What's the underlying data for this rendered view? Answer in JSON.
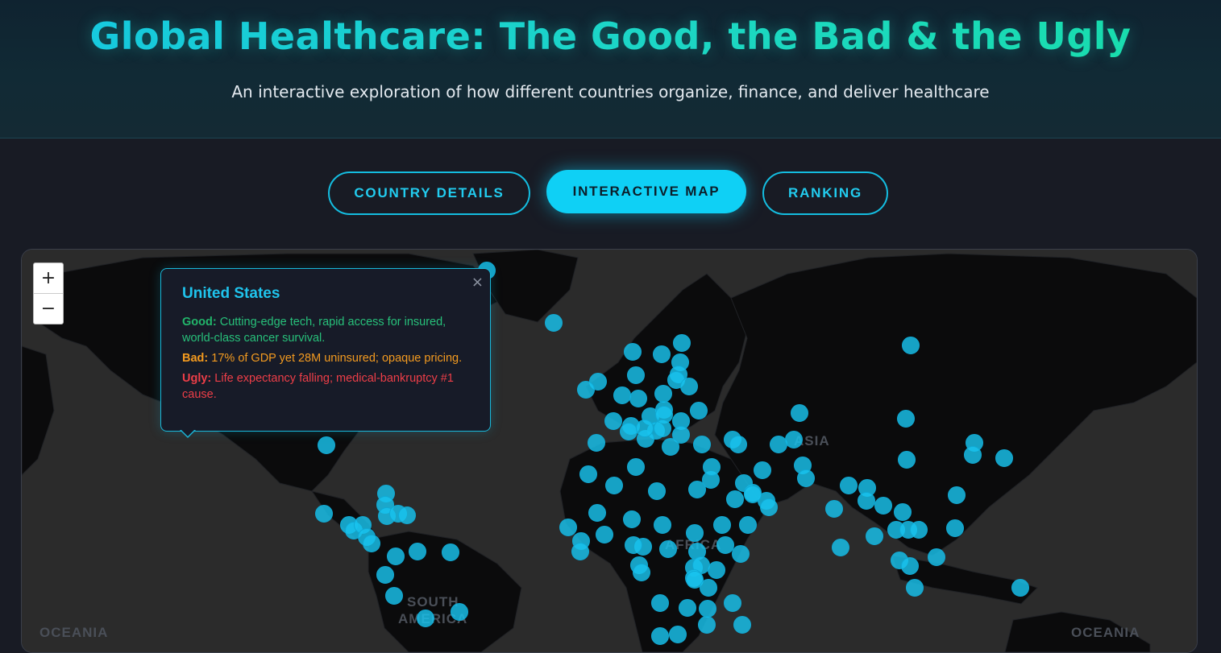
{
  "header": {
    "title": "Global Healthcare: The Good, the Bad & the Ugly",
    "subtitle": "An interactive exploration of how different countries organize, finance, and deliver healthcare"
  },
  "tabs": [
    {
      "label": "COUNTRY DETAILS",
      "active": false
    },
    {
      "label": "INTERACTIVE MAP",
      "active": true
    },
    {
      "label": "RANKING",
      "active": false
    }
  ],
  "map": {
    "zoom_in": "+",
    "zoom_out": "−",
    "labels": {
      "asia": "ASIA",
      "south_america_1": "SOUTH",
      "south_america_2": "AMERICA",
      "africa": "AFRICA",
      "oceania_left": "OCEANIA",
      "oceania_right": "OCEANIA"
    },
    "marker_color": "#19c3ee",
    "popup": {
      "country": "United States",
      "close": "×",
      "good_label": "Good:",
      "good_text": "Cutting-edge tech, rapid access for insured, world-class cancer survival.",
      "bad_label": "Bad:",
      "bad_text": "17% of GDP yet 28M uninsured; opaque pricing.",
      "ugly_label": "Ugly:",
      "ugly_text": "Life expectancy falling; medical-bankruptcy #1 cause."
    }
  },
  "colors": {
    "accent": "#0fd0f5",
    "good": "#27c07a",
    "bad": "#f29a20",
    "ugly": "#ee3e48"
  }
}
